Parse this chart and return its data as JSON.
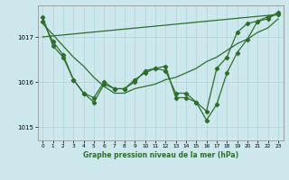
{
  "xlabel": "Graphe pression niveau de la mer (hPa)",
  "background_color": "#cce8ec",
  "grid_color": "#aad4d8",
  "line_color": "#2d6e2d",
  "ylim": [
    1014.7,
    1017.7
  ],
  "yticks": [
    1015,
    1016,
    1017
  ],
  "xlim": [
    -0.5,
    23.5
  ],
  "xticks": [
    0,
    1,
    2,
    3,
    4,
    5,
    6,
    7,
    8,
    9,
    10,
    11,
    12,
    13,
    14,
    15,
    16,
    17,
    18,
    19,
    20,
    21,
    22,
    23
  ],
  "series1_x": [
    0,
    1,
    2,
    3,
    4,
    5,
    6,
    7,
    8,
    9,
    10,
    11,
    12,
    13,
    14,
    15,
    16,
    17,
    18,
    19,
    20,
    21,
    22,
    23
  ],
  "series1": [
    1017.3,
    1017.05,
    1016.8,
    1016.55,
    1016.35,
    1016.1,
    1015.9,
    1015.75,
    1015.75,
    1015.85,
    1015.9,
    1015.95,
    1016.05,
    1016.1,
    1016.2,
    1016.3,
    1016.45,
    1016.55,
    1016.7,
    1016.85,
    1016.95,
    1017.1,
    1017.2,
    1017.4
  ],
  "series2_x": [
    0,
    1,
    2,
    3,
    4,
    5,
    6,
    7,
    8,
    9,
    10,
    11,
    12,
    13,
    14,
    15,
    16,
    17,
    18,
    19,
    20,
    21,
    22,
    23
  ],
  "series2": [
    1017.45,
    1016.8,
    1016.55,
    1016.05,
    1015.75,
    1015.65,
    1016.0,
    1015.85,
    1015.85,
    1016.05,
    1016.2,
    1016.3,
    1016.25,
    1015.75,
    1015.75,
    1015.55,
    1015.35,
    1016.3,
    1016.55,
    1017.1,
    1017.3,
    1017.35,
    1017.4,
    1017.55
  ],
  "series3_x": [
    0,
    1,
    2,
    3,
    4,
    5,
    6,
    7,
    8,
    9,
    10,
    11,
    12,
    13,
    14,
    15,
    16,
    17,
    18,
    19,
    20,
    21,
    22,
    23
  ],
  "series3": [
    1017.35,
    1016.9,
    1016.6,
    1016.05,
    1015.75,
    1015.55,
    1015.95,
    1015.85,
    1015.85,
    1016.0,
    1016.25,
    1016.3,
    1016.35,
    1015.65,
    1015.65,
    1015.55,
    1015.15,
    1015.5,
    1016.2,
    1016.65,
    1016.95,
    1017.35,
    1017.45,
    1017.5
  ],
  "series4_x": [
    0,
    23
  ],
  "series4": [
    1017.0,
    1017.5
  ]
}
